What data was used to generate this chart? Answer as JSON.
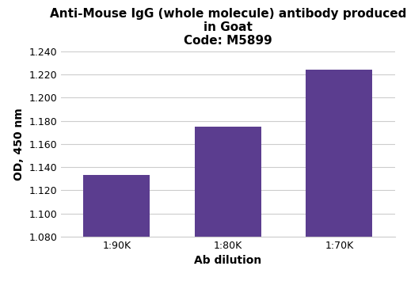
{
  "categories": [
    "1:90K",
    "1:80K",
    "1:70K"
  ],
  "values": [
    1.133,
    1.175,
    1.224
  ],
  "bar_color": "#5b3d8f",
  "title_line1": "Anti-Mouse IgG (whole molecule) antibody produced",
  "title_line2": "in Goat",
  "title_line3": "Code: M5899",
  "xlabel": "Ab dilution",
  "ylabel": "OD, 450 nm",
  "ylim": [
    1.08,
    1.24
  ],
  "ybaseline": 1.08,
  "yticks": [
    1.08,
    1.1,
    1.12,
    1.14,
    1.16,
    1.18,
    1.2,
    1.22,
    1.24
  ],
  "background_color": "#ffffff",
  "grid_color": "#cccccc",
  "title_fontsize": 11,
  "axis_label_fontsize": 10,
  "tick_fontsize": 9,
  "bar_width": 0.6
}
